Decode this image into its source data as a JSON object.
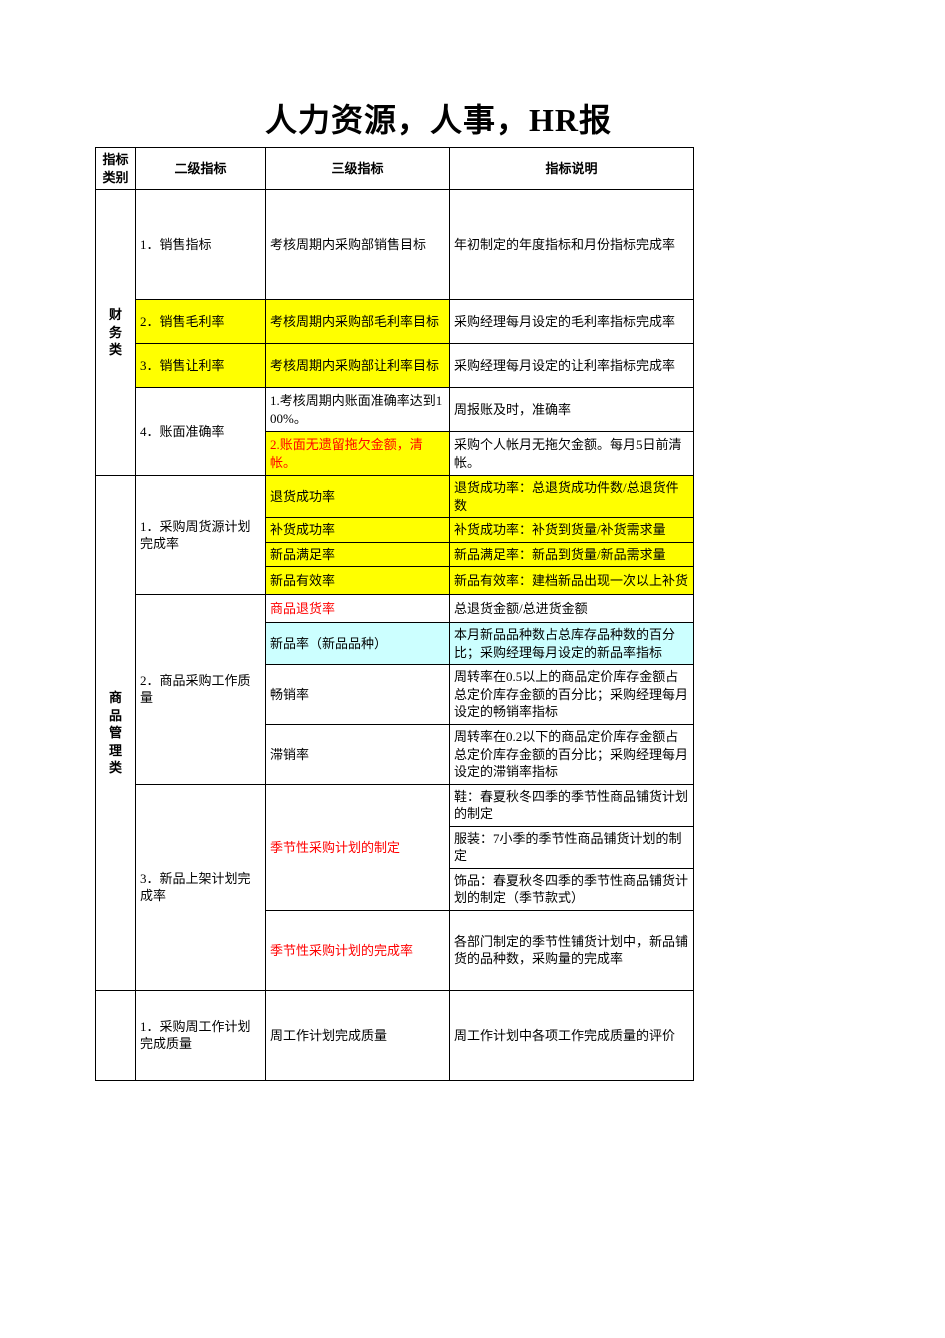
{
  "title": "人力资源，人事，HR报",
  "headers": {
    "cat": "指标类别",
    "l2": "二级指标",
    "l3": "三级指标",
    "desc": "指标说明"
  },
  "colors": {
    "highlight_yellow": "#ffff00",
    "highlight_cyan": "#ccffff",
    "text_red": "#ff0000",
    "border": "#000000",
    "background": "#ffffff"
  },
  "cat1": {
    "label": "财务类",
    "r1_l2": "1．销售指标",
    "r1_l3": "考核周期内采购部销售目标",
    "r1_desc": "年初制定的年度指标和月份指标完成率",
    "r2_l2": "2．销售毛利率",
    "r2_l3": "考核周期内采购部毛利率目标",
    "r2_desc": "采购经理每月设定的毛利率指标完成率",
    "r3_l2": "3．销售让利率",
    "r3_l3": "考核周期内采购部让利率目标",
    "r3_desc": "采购经理每月设定的让利率指标完成率",
    "r4_l2": "4．账面准确率",
    "r4a_l3": "1.考核周期内账面准确率达到100%。",
    "r4a_desc": "周报账及时，准确率",
    "r4b_l3": "2.账面无遗留拖欠金额，清帐。",
    "r4b_desc": "采购个人帐月无拖欠金额。每月5日前清帐。"
  },
  "cat2": {
    "label": "商品管理类",
    "s1_l2": "1．采购周货源计划完成率",
    "s1a_l3": "退货成功率",
    "s1a_desc": "退货成功率：总退货成功件数/总退货件数",
    "s1b_l3": "补货成功率",
    "s1b_desc": "补货成功率：补货到货量/补货需求量",
    "s1c_l3": "新品满足率",
    "s1c_desc": "新品满足率：新品到货量/新品需求量",
    "s1d_l3": "新品有效率",
    "s1d_desc": "新品有效率：建档新品出现一次以上补货",
    "s2_l2": "2．商品采购工作质量",
    "s2a_l3": "商品退货率",
    "s2a_desc": "总退货金额/总进货金额",
    "s2b_l3": "新品率（新品品种）",
    "s2b_desc": "本月新品品种数占总库存品种数的百分比；采购经理每月设定的新品率指标",
    "s2c_l3": "畅销率",
    "s2c_desc": "周转率在0.5以上的商品定价库存金额占总定价库存金额的百分比；采购经理每月设定的畅销率指标",
    "s2d_l3": "滞销率",
    "s2d_desc": "周转率在0.2以下的商品定价库存金额占总定价库存金额的百分比；采购经理每月设定的滞销率指标",
    "s3_l2": "3．新品上架计划完成率",
    "s3a_l3": "季节性采购计划的制定",
    "s3a_desc_1": "鞋：春夏秋冬四季的季节性商品铺货计划的制定",
    "s3a_desc_2": "服装：7小季的季节性商品铺货计划的制定",
    "s3a_desc_3": "饰品：春夏秋冬四季的季节性商品铺货计划的制定（季节款式）",
    "s3b_l3": "季节性采购计划的完成率",
    "s3b_desc": "各部门制定的季节性铺货计划中，新品铺货的品种数，采购量的完成率"
  },
  "cat3": {
    "s1_l2": "1．采购周工作计划完成质量",
    "s1_l3": "周工作计划完成质量",
    "s1_desc": "周工作计划中各项工作完成质量的评价"
  }
}
